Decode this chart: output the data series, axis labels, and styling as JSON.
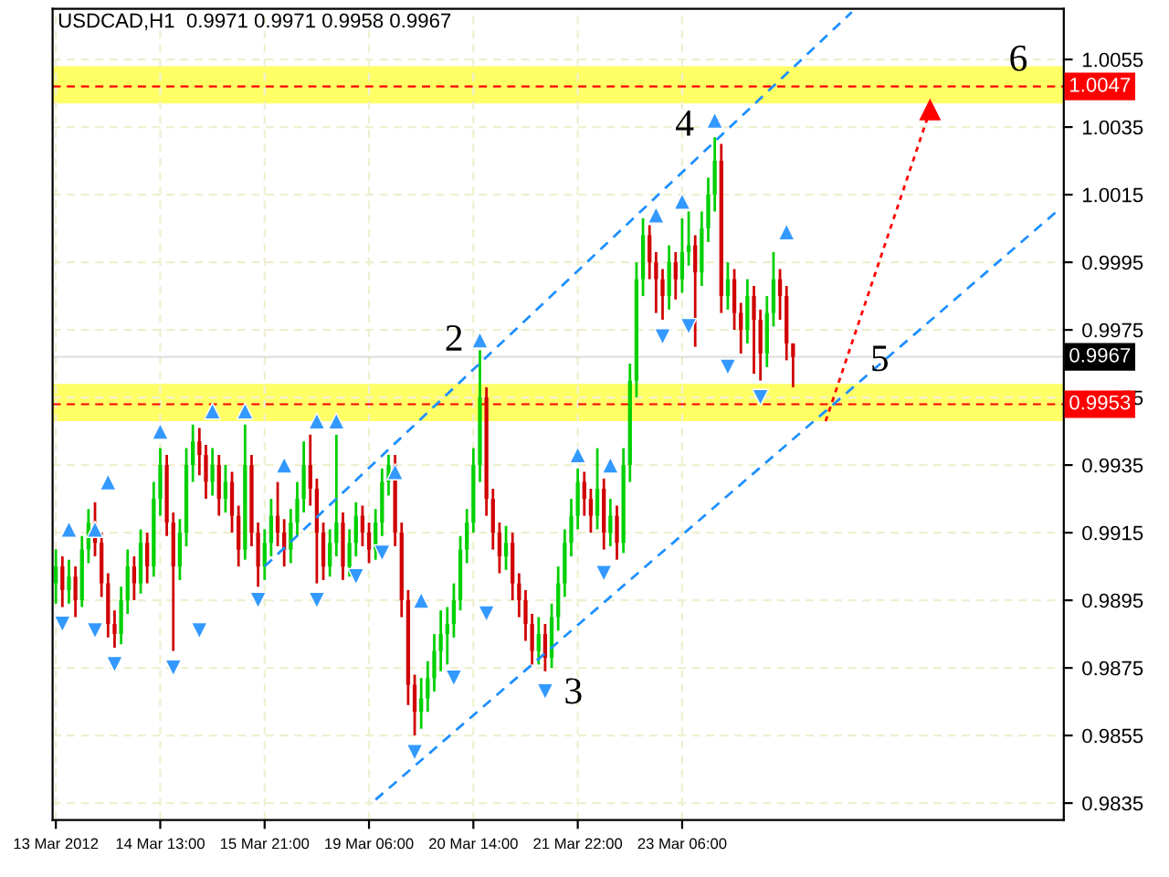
{
  "chart_data": {
    "type": "candlestick",
    "title": "USDCAD,H1  0.9971 0.9971 0.9958 0.9967",
    "categories": [
      "13 Mar 2012",
      null,
      null,
      null,
      null,
      null,
      null,
      null,
      null,
      null,
      null,
      null,
      null,
      null,
      null,
      null,
      "14 Mar 13:00",
      null,
      null,
      null,
      null,
      null,
      null,
      null,
      null,
      null,
      null,
      null,
      null,
      null,
      null,
      null,
      "15 Mar 21:00",
      null,
      null,
      null,
      null,
      null,
      null,
      null,
      null,
      null,
      null,
      null,
      null,
      null,
      null,
      null,
      "19 Mar 06:00",
      null,
      null,
      null,
      null,
      null,
      null,
      null,
      null,
      null,
      null,
      null,
      null,
      null,
      null,
      null,
      "20 Mar 14:00",
      null,
      null,
      null,
      null,
      null,
      null,
      null,
      null,
      null,
      null,
      null,
      null,
      null,
      null,
      null,
      "21 Mar 22:00",
      null,
      null,
      null,
      null,
      null,
      null,
      null,
      null,
      null,
      null,
      null,
      null,
      null,
      null,
      null,
      "23 Mar 06:00",
      null,
      null,
      null,
      null,
      null,
      null,
      null,
      null,
      null,
      null,
      null,
      null,
      null,
      null,
      null,
      null,
      null,
      null,
      null,
      null,
      null,
      null,
      null,
      null,
      null,
      null,
      null,
      null,
      null,
      null,
      null,
      null,
      null,
      null,
      null,
      null,
      null,
      null,
      null,
      null,
      null,
      null,
      null,
      null,
      null,
      null,
      null,
      null,
      null,
      null,
      null,
      null,
      null,
      null,
      null,
      null,
      null,
      null
    ],
    "ohlc": [
      [
        0.99,
        0.991,
        0.9894,
        0.9905
      ],
      [
        0.9905,
        0.9908,
        0.9893,
        0.9898
      ],
      [
        0.9898,
        0.9907,
        0.9894,
        0.9902
      ],
      [
        0.9902,
        0.9905,
        0.989,
        0.9895
      ],
      [
        0.9895,
        0.9914,
        0.9893,
        0.991
      ],
      [
        0.991,
        0.9922,
        0.9906,
        0.9918
      ],
      [
        0.9918,
        0.9924,
        0.9908,
        0.9912
      ],
      [
        0.9912,
        0.9915,
        0.9896,
        0.99
      ],
      [
        0.99,
        0.9903,
        0.9884,
        0.9888
      ],
      [
        0.9888,
        0.9892,
        0.9881,
        0.9885
      ],
      [
        0.9885,
        0.9899,
        0.9882,
        0.9895
      ],
      [
        0.9895,
        0.991,
        0.9891,
        0.9905
      ],
      [
        0.9905,
        0.9908,
        0.9895,
        0.99
      ],
      [
        0.99,
        0.9916,
        0.9897,
        0.9912
      ],
      [
        0.9912,
        0.9915,
        0.99,
        0.9905
      ],
      [
        0.9905,
        0.993,
        0.9902,
        0.9925
      ],
      [
        0.9925,
        0.994,
        0.992,
        0.9935
      ],
      [
        0.9935,
        0.9938,
        0.9914,
        0.9918
      ],
      [
        0.9918,
        0.9921,
        0.988,
        0.9905
      ],
      [
        0.9905,
        0.9919,
        0.9901,
        0.9915
      ],
      [
        0.9915,
        0.994,
        0.9911,
        0.9935
      ],
      [
        0.9935,
        0.9947,
        0.993,
        0.9942
      ],
      [
        0.9942,
        0.9946,
        0.9932,
        0.9938
      ],
      [
        0.9938,
        0.9941,
        0.9925,
        0.993
      ],
      [
        0.993,
        0.994,
        0.9926,
        0.9935
      ],
      [
        0.9935,
        0.9938,
        0.992,
        0.9925
      ],
      [
        0.9925,
        0.9935,
        0.9921,
        0.993
      ],
      [
        0.993,
        0.9933,
        0.9915,
        0.992
      ],
      [
        0.992,
        0.9923,
        0.9905,
        0.991
      ],
      [
        0.991,
        0.9947,
        0.9907,
        0.9935
      ],
      [
        0.9935,
        0.9938,
        0.9911,
        0.9915
      ],
      [
        0.9915,
        0.9918,
        0.9899,
        0.9905
      ],
      [
        0.9905,
        0.9916,
        0.9901,
        0.9912
      ],
      [
        0.9912,
        0.9925,
        0.9908,
        0.992
      ],
      [
        0.992,
        0.993,
        0.9911,
        0.9915
      ],
      [
        0.9915,
        0.9919,
        0.9905,
        0.991
      ],
      [
        0.991,
        0.9922,
        0.9906,
        0.9918
      ],
      [
        0.9918,
        0.993,
        0.9914,
        0.9925
      ],
      [
        0.9925,
        0.9942,
        0.9921,
        0.9935
      ],
      [
        0.9935,
        0.9944,
        0.9923,
        0.9928
      ],
      [
        0.9928,
        0.9931,
        0.99,
        0.9915
      ],
      [
        0.9915,
        0.9918,
        0.9901,
        0.9905
      ],
      [
        0.9905,
        0.9916,
        0.9902,
        0.9912
      ],
      [
        0.9912,
        0.9944,
        0.9908,
        0.9918
      ],
      [
        0.9918,
        0.9921,
        0.9901,
        0.9905
      ],
      [
        0.9905,
        0.9916,
        0.9902,
        0.9912
      ],
      [
        0.9912,
        0.9924,
        0.9908,
        0.992
      ],
      [
        0.992,
        0.9923,
        0.9911,
        0.9915
      ],
      [
        0.9915,
        0.9918,
        0.9906,
        0.991
      ],
      [
        0.991,
        0.9922,
        0.9907,
        0.9918
      ],
      [
        0.9918,
        0.9934,
        0.9914,
        0.993
      ],
      [
        0.993,
        0.9938,
        0.9926,
        0.9935
      ],
      [
        0.9935,
        0.9938,
        0.9911,
        0.9915
      ],
      [
        0.9915,
        0.9918,
        0.989,
        0.9895
      ],
      [
        0.9895,
        0.9898,
        0.9864,
        0.987
      ],
      [
        0.987,
        0.9873,
        0.9855,
        0.9862
      ],
      [
        0.9862,
        0.9872,
        0.9857,
        0.9866
      ],
      [
        0.9866,
        0.9877,
        0.9862,
        0.9872
      ],
      [
        0.9872,
        0.9885,
        0.9868,
        0.988
      ],
      [
        0.988,
        0.9892,
        0.9874,
        0.9885
      ],
      [
        0.9885,
        0.9893,
        0.9876,
        0.9888
      ],
      [
        0.9888,
        0.99,
        0.9884,
        0.9895
      ],
      [
        0.9895,
        0.9914,
        0.9892,
        0.991
      ],
      [
        0.991,
        0.9922,
        0.9906,
        0.9918
      ],
      [
        0.9918,
        0.994,
        0.9915,
        0.9935
      ],
      [
        0.9935,
        0.9969,
        0.993,
        0.9955
      ],
      [
        0.9955,
        0.9958,
        0.992,
        0.9925
      ],
      [
        0.9925,
        0.9928,
        0.991,
        0.9915
      ],
      [
        0.9915,
        0.9918,
        0.9903,
        0.9908
      ],
      [
        0.9908,
        0.9917,
        0.9904,
        0.9912
      ],
      [
        0.9912,
        0.9915,
        0.9895,
        0.99
      ],
      [
        0.99,
        0.9903,
        0.989,
        0.9895
      ],
      [
        0.9895,
        0.9898,
        0.9883,
        0.9888
      ],
      [
        0.9888,
        0.9891,
        0.9876,
        0.988
      ],
      [
        0.988,
        0.989,
        0.9876,
        0.9885
      ],
      [
        0.9885,
        0.9888,
        0.9874,
        0.9878
      ],
      [
        0.9878,
        0.9894,
        0.9875,
        0.989
      ],
      [
        0.989,
        0.9905,
        0.9886,
        0.99
      ],
      [
        0.99,
        0.9916,
        0.9896,
        0.9912
      ],
      [
        0.9912,
        0.9925,
        0.9908,
        0.992
      ],
      [
        0.992,
        0.9934,
        0.9916,
        0.993
      ],
      [
        0.993,
        0.9933,
        0.992,
        0.9925
      ],
      [
        0.9925,
        0.9928,
        0.9915,
        0.992
      ],
      [
        0.992,
        0.994,
        0.9916,
        0.9928
      ],
      [
        0.9928,
        0.9931,
        0.991,
        0.9915
      ],
      [
        0.9915,
        0.9925,
        0.9911,
        0.992
      ],
      [
        0.992,
        0.9923,
        0.9907,
        0.9912
      ],
      [
        0.9912,
        0.994,
        0.9909,
        0.9935
      ],
      [
        0.9935,
        0.9965,
        0.993,
        0.996
      ],
      [
        0.996,
        0.9995,
        0.9955,
        0.999
      ],
      [
        0.999,
        1.0008,
        0.9985,
        1.0003
      ],
      [
        1.0003,
        1.0006,
        0.999,
        0.9995
      ],
      [
        0.9995,
        0.9998,
        0.998,
        0.999
      ],
      [
        0.999,
        0.9993,
        0.9978,
        0.9985
      ],
      [
        0.9985,
        1.0,
        0.9981,
        0.9995
      ],
      [
        0.9995,
        0.9998,
        0.9984,
        0.999
      ],
      [
        0.999,
        1.0008,
        0.9986,
        0.9998
      ],
      [
        0.9998,
        1.001,
        0.9994,
        1.0
      ],
      [
        1.0,
        1.0003,
        0.997,
        0.9992
      ],
      [
        0.9992,
        1.001,
        0.9988,
        1.0005
      ],
      [
        1.0005,
        1.002,
        1.0001,
        1.0015
      ],
      [
        1.0015,
        1.0032,
        1.001,
        1.0025
      ],
      [
        1.0025,
        1.003,
        0.998,
        0.9985
      ],
      [
        0.9985,
        0.9995,
        0.9981,
        0.999
      ],
      [
        0.999,
        0.9993,
        0.9975,
        0.998
      ],
      [
        0.998,
        0.9983,
        0.9968,
        0.9975
      ],
      [
        0.9975,
        0.999,
        0.9971,
        0.9985
      ],
      [
        0.9985,
        0.9988,
        0.9962,
        0.9978
      ],
      [
        0.9978,
        0.9981,
        0.996,
        0.9968
      ],
      [
        0.9968,
        0.9985,
        0.9964,
        0.998
      ],
      [
        0.998,
        0.9998,
        0.9976,
        0.999
      ],
      [
        0.999,
        0.9993,
        0.9978,
        0.9985
      ],
      [
        0.9985,
        0.9988,
        0.9966,
        0.9971
      ],
      [
        0.9971,
        0.9971,
        0.9958,
        0.9967
      ],
      null,
      null,
      null,
      null,
      null,
      null,
      null,
      null,
      null,
      null,
      null,
      null,
      null,
      null,
      null,
      null,
      null,
      null,
      null,
      null,
      null,
      null,
      null,
      null,
      null,
      null,
      null,
      null,
      null,
      null,
      null,
      null,
      null,
      null,
      null,
      null,
      null,
      null,
      null,
      null,
      null
    ],
    "colors": [
      "#00d000",
      "#d00000",
      "#00d000",
      "#d00000",
      "#00d000",
      "#00d000",
      "#d00000",
      "#d00000",
      "#d00000",
      "#d00000",
      "#00d000",
      "#00d000",
      "#d00000",
      "#00d000",
      "#d00000",
      "#00d000",
      "#00d000",
      "#d00000",
      "#d00000",
      "#00d000",
      "#00d000",
      "#00d000",
      "#d00000",
      "#d00000",
      "#00d000",
      "#d00000",
      "#00d000",
      "#d00000",
      "#d00000",
      "#00d000",
      "#d00000",
      "#d00000",
      "#00d000",
      "#00d000",
      "#d00000",
      "#d00000",
      "#00d000",
      "#00d000",
      "#00d000",
      "#d00000",
      "#d00000",
      "#d00000",
      "#00d000",
      "#00d000",
      "#d00000",
      "#00d000",
      "#00d000",
      "#d00000",
      "#d00000",
      "#00d000",
      "#00d000",
      "#00d000",
      "#d00000",
      "#d00000",
      "#d00000",
      "#d00000",
      "#00d000",
      "#00d000",
      "#00d000",
      "#00d000",
      "#00d000",
      "#00d000",
      "#00d000",
      "#00d000",
      "#00d000",
      "#00d000",
      "#d00000",
      "#d00000",
      "#d00000",
      "#00d000",
      "#d00000",
      "#d00000",
      "#d00000",
      "#d00000",
      "#00d000",
      "#d00000",
      "#00d000",
      "#00d000",
      "#00d000",
      "#00d000",
      "#00d000",
      "#d00000",
      "#d00000",
      "#00d000",
      "#d00000",
      "#00d000",
      "#d00000",
      "#00d000",
      "#00d000",
      "#00d000",
      "#00d000",
      "#d00000",
      "#d00000",
      "#d00000",
      "#00d000",
      "#d00000",
      "#00d000",
      "#00d000",
      "#d00000",
      "#00d000",
      "#00d000",
      "#00d000",
      "#d00000",
      "#00d000",
      "#d00000",
      "#d00000",
      "#00d000",
      "#d00000",
      "#d00000",
      "#00d000",
      "#00d000",
      "#d00000",
      "#d00000",
      "#d00000",
      null,
      null,
      null,
      null,
      null,
      null,
      null,
      null,
      null,
      null,
      null,
      null,
      null,
      null,
      null,
      null,
      null,
      null,
      null,
      null,
      null,
      null,
      null,
      null,
      null,
      null,
      null,
      null,
      null,
      null,
      null,
      null,
      null,
      null,
      null,
      null,
      null,
      null,
      null,
      null,
      null
    ],
    "series": [
      {
        "type": "line",
        "color": "#1e90ff",
        "line_style": "dashed",
        "values": [
          null,
          null,
          null,
          null,
          null,
          null,
          null,
          null,
          null,
          null,
          null,
          null,
          null,
          null,
          null,
          null,
          null,
          null,
          null,
          null,
          null,
          null,
          null,
          null,
          null,
          null,
          null,
          null,
          null,
          null,
          null,
          null,
          0.9905,
          null,
          null,
          null,
          null,
          null,
          null,
          null,
          null,
          null,
          null,
          null,
          null,
          null,
          null,
          null,
          null,
          null,
          null,
          null,
          null,
          null,
          null,
          null,
          null,
          null,
          null,
          null,
          null,
          null,
          null,
          null,
          null,
          null,
          null,
          null,
          null,
          null,
          null,
          null,
          null,
          null,
          null,
          null,
          null,
          null,
          null,
          null,
          null,
          null,
          null,
          null,
          null,
          null,
          null,
          null,
          null,
          null,
          null,
          null,
          null,
          null,
          null,
          null,
          null,
          null,
          null,
          null,
          null,
          null,
          null,
          null,
          null,
          null,
          null,
          null,
          null,
          null,
          null,
          null,
          null,
          null,
          null,
          null,
          null,
          null,
          null,
          null,
          null,
          null,
          1.0069,
          null,
          null,
          null,
          null,
          null,
          null,
          null,
          null,
          null,
          null,
          null,
          null,
          null,
          null,
          null,
          null,
          null,
          null,
          null,
          null,
          null,
          null,
          null,
          null,
          null,
          null,
          null,
          null,
          null,
          null,
          null,
          null
        ]
      },
      {
        "type": "line",
        "color": "#1e90ff",
        "line_style": "dashed",
        "values": [
          null,
          null,
          null,
          null,
          null,
          null,
          null,
          null,
          null,
          null,
          null,
          null,
          null,
          null,
          null,
          null,
          null,
          null,
          null,
          null,
          null,
          null,
          null,
          null,
          null,
          null,
          null,
          null,
          null,
          null,
          null,
          null,
          null,
          null,
          null,
          null,
          null,
          null,
          null,
          null,
          null,
          null,
          null,
          null,
          null,
          null,
          null,
          null,
          null,
          0.9836,
          null,
          null,
          null,
          null,
          null,
          null,
          null,
          null,
          null,
          null,
          null,
          null,
          null,
          null,
          null,
          null,
          null,
          null,
          null,
          null,
          null,
          null,
          null,
          null,
          null,
          null,
          null,
          null,
          null,
          null,
          null,
          null,
          null,
          null,
          null,
          null,
          null,
          null,
          null,
          null,
          null,
          null,
          null,
          null,
          null,
          null,
          null,
          null,
          null,
          null,
          null,
          null,
          null,
          null,
          null,
          null,
          null,
          null,
          null,
          null,
          null,
          null,
          null,
          null,
          null,
          null,
          null,
          null,
          null,
          null,
          null,
          null,
          null,
          null,
          null,
          null,
          null,
          null,
          null,
          null,
          null,
          null,
          null,
          null,
          null,
          null,
          null,
          null,
          null,
          null,
          null,
          null,
          null,
          null,
          null,
          null,
          null,
          null,
          null,
          null,
          null,
          null,
          null,
          null,
          1.0011
        ]
      },
      {
        "type": "line",
        "color": "#ff0000",
        "line_style": "dotted",
        "marker": "triangle",
        "values": [
          null,
          null,
          null,
          null,
          null,
          null,
          null,
          null,
          null,
          null,
          null,
          null,
          null,
          null,
          null,
          null,
          null,
          null,
          null,
          null,
          null,
          null,
          null,
          null,
          null,
          null,
          null,
          null,
          null,
          null,
          null,
          null,
          null,
          null,
          null,
          null,
          null,
          null,
          null,
          null,
          null,
          null,
          null,
          null,
          null,
          null,
          null,
          null,
          null,
          null,
          null,
          null,
          null,
          null,
          null,
          null,
          null,
          null,
          null,
          null,
          null,
          null,
          null,
          null,
          null,
          null,
          null,
          null,
          null,
          null,
          null,
          null,
          null,
          null,
          null,
          null,
          null,
          null,
          null,
          null,
          null,
          null,
          null,
          null,
          null,
          null,
          null,
          null,
          null,
          null,
          null,
          null,
          null,
          null,
          null,
          null,
          null,
          null,
          null,
          null,
          null,
          null,
          null,
          null,
          null,
          null,
          null,
          null,
          null,
          null,
          null,
          null,
          null,
          null,
          null,
          null,
          null,
          null,
          0.9948,
          null,
          null,
          null,
          null,
          null,
          null,
          null,
          null,
          null,
          null,
          null,
          null,
          null,
          null,
          null,
          1.004,
          null,
          null,
          null,
          null,
          null,
          null,
          null,
          null,
          null,
          null,
          null,
          null,
          null,
          null,
          null,
          null,
          null,
          null,
          null,
          null
        ]
      },
      {
        "type": "scatter",
        "color": "#3399ff",
        "marker": "triangle",
        "values": [
          null,
          null,
          0.9916,
          null,
          null,
          null,
          0.9916,
          null,
          0.993,
          null,
          null,
          null,
          null,
          null,
          null,
          null,
          0.9945,
          null,
          null,
          null,
          null,
          null,
          null,
          null,
          0.9951,
          null,
          null,
          null,
          null,
          0.9951,
          null,
          null,
          null,
          null,
          null,
          0.9935,
          null,
          null,
          null,
          null,
          0.9948,
          null,
          null,
          0.9948,
          null,
          null,
          null,
          null,
          null,
          null,
          null,
          null,
          0.9933,
          null,
          null,
          null,
          0.9895,
          null,
          null,
          null,
          null,
          null,
          null,
          null,
          null,
          0.9972,
          null,
          null,
          null,
          null,
          null,
          null,
          null,
          null,
          null,
          null,
          null,
          null,
          null,
          null,
          0.9938,
          null,
          null,
          null,
          null,
          0.9935,
          null,
          null,
          null,
          null,
          null,
          null,
          1.0009,
          null,
          null,
          null,
          1.0013,
          null,
          null,
          null,
          null,
          1.0037,
          null,
          null,
          null,
          null,
          null,
          null,
          null,
          null,
          null,
          null,
          1.0004,
          null,
          null,
          null,
          null,
          null,
          null,
          null,
          null,
          null,
          null,
          null,
          null,
          null,
          null,
          null,
          null,
          null,
          null,
          null,
          null,
          null,
          null,
          null,
          null,
          null,
          null,
          null,
          null,
          null,
          null,
          null,
          null,
          null,
          null,
          null,
          null,
          null,
          null,
          null,
          null,
          null,
          null
        ]
      },
      {
        "type": "scatter",
        "color": "#3399ff",
        "marker": "triangle_down",
        "values": [
          null,
          0.9888,
          null,
          null,
          null,
          null,
          0.9886,
          null,
          null,
          0.9876,
          null,
          null,
          null,
          null,
          null,
          null,
          null,
          null,
          0.9875,
          null,
          null,
          null,
          0.9886,
          null,
          null,
          null,
          null,
          null,
          null,
          null,
          null,
          0.9895,
          null,
          null,
          null,
          null,
          null,
          null,
          null,
          null,
          0.9895,
          null,
          null,
          null,
          null,
          null,
          0.9902,
          null,
          null,
          null,
          0.9909,
          null,
          null,
          null,
          null,
          0.985,
          null,
          null,
          null,
          null,
          null,
          0.9872,
          null,
          null,
          null,
          null,
          0.9891,
          null,
          null,
          null,
          null,
          null,
          null,
          null,
          null,
          0.9868,
          null,
          null,
          null,
          null,
          null,
          null,
          null,
          null,
          0.9903,
          null,
          null,
          null,
          null,
          null,
          null,
          null,
          null,
          0.9973,
          null,
          null,
          null,
          0.9976,
          null,
          null,
          null,
          null,
          null,
          0.9964,
          null,
          null,
          null,
          null,
          0.9955,
          null,
          null,
          null,
          null,
          null,
          null,
          null,
          null,
          null,
          null,
          null,
          null,
          null,
          null,
          null,
          null,
          null,
          null,
          null,
          null,
          null,
          null,
          null,
          null,
          null,
          null,
          null,
          null,
          null,
          null,
          null,
          null,
          null,
          null,
          null,
          null,
          null,
          null,
          null,
          null,
          null,
          null,
          null,
          null,
          null,
          null
        ]
      }
    ],
    "bands": [
      {
        "axis": "y",
        "from": 0.9948,
        "to": 0.9959,
        "color": "#ffff66"
      },
      {
        "axis": "y",
        "from": 1.0042,
        "to": 1.0053,
        "color": "#ffff66"
      }
    ],
    "ref_lines": [
      {
        "axis": "y",
        "value": 1.0047,
        "label": "1.0047",
        "color": "#ff0000",
        "line_style": "dashed"
      },
      {
        "axis": "y",
        "value": 0.9953,
        "label": "0.9953",
        "color": "#ff0000",
        "line_style": "dashed"
      },
      {
        "axis": "y",
        "value": 0.9967,
        "label": "0.9967",
        "color": "#000000",
        "line_style": "solid"
      }
    ],
    "annotations": [
      "2",
      "3",
      "4",
      "5",
      "6"
    ],
    "ylim": [
      0.983,
      1.007
    ],
    "yticks": [
      0.9835,
      0.9855,
      0.9875,
      0.9895,
      0.9915,
      0.9935,
      0.9955,
      0.9975,
      0.9995,
      1.0015,
      1.0035,
      1.0055
    ],
    "grid": true
  }
}
